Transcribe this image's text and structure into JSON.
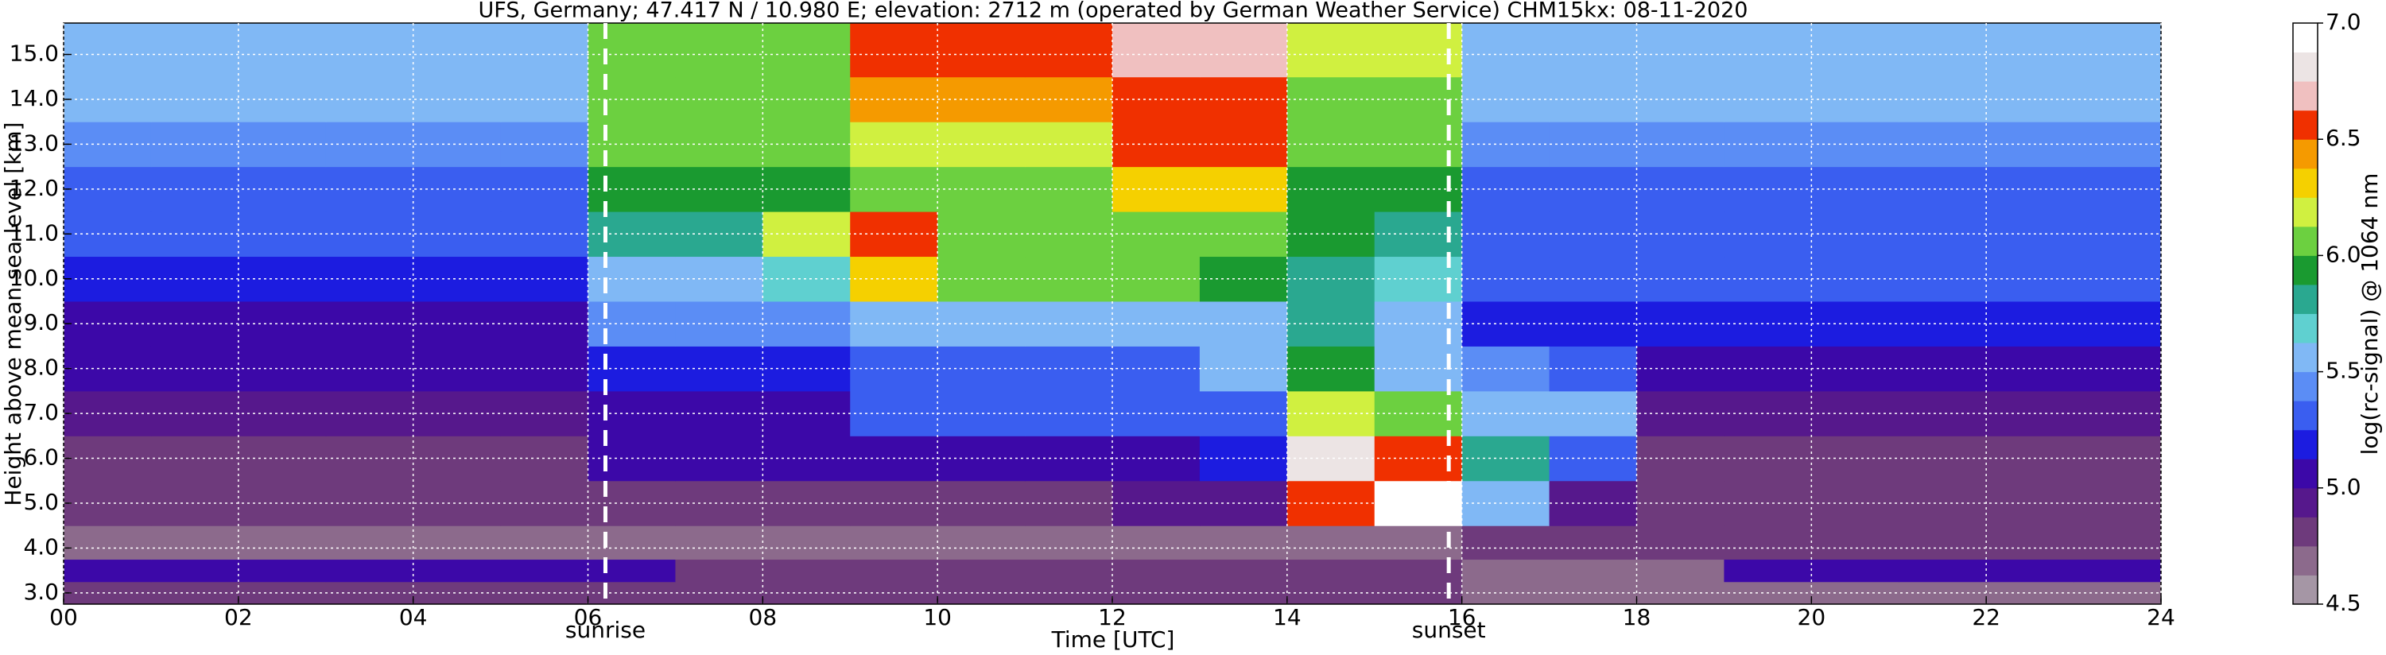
{
  "chart_data": {
    "type": "heatmap",
    "title": "UFS, Germany; 47.417 N / 10.980 E; elevation: 2712 m  (operated by German Weather Service)     CHM15kx: 08-11-2020",
    "xlabel": "Time [UTC]",
    "ylabel": "Height above mean sea level [km]",
    "colorbar_label": "log(rc-signal) @ 1064 nm",
    "xlim": [
      0,
      24
    ],
    "ylim": [
      2.75,
      15.7
    ],
    "xticks": [
      {
        "value": 0,
        "label": "00"
      },
      {
        "value": 2,
        "label": "02"
      },
      {
        "value": 4,
        "label": "04"
      },
      {
        "value": 6,
        "label": "06"
      },
      {
        "value": 8,
        "label": "08"
      },
      {
        "value": 10,
        "label": "10"
      },
      {
        "value": 12,
        "label": "12"
      },
      {
        "value": 14,
        "label": "14"
      },
      {
        "value": 16,
        "label": "16"
      },
      {
        "value": 18,
        "label": "18"
      },
      {
        "value": 20,
        "label": "20"
      },
      {
        "value": 22,
        "label": "22"
      },
      {
        "value": 24,
        "label": "24"
      }
    ],
    "yticks": [
      {
        "value": 3,
        "label": "3.0"
      },
      {
        "value": 4,
        "label": "4.0"
      },
      {
        "value": 5,
        "label": "5.0"
      },
      {
        "value": 6,
        "label": "6.0"
      },
      {
        "value": 7,
        "label": "7.0"
      },
      {
        "value": 8,
        "label": "8.0"
      },
      {
        "value": 9,
        "label": "9.0"
      },
      {
        "value": 10,
        "label": "10.0"
      },
      {
        "value": 11,
        "label": "11.0"
      },
      {
        "value": 12,
        "label": "12.0"
      },
      {
        "value": 13,
        "label": "13.0"
      },
      {
        "value": 14,
        "label": "14.0"
      },
      {
        "value": 15,
        "label": "15.0"
      }
    ],
    "grid": true,
    "clim": [
      4.5,
      7.0
    ],
    "cticks": [
      4.5,
      {
        "value": 5,
        "label": "5.0"
      },
      5.5,
      {
        "value": 6,
        "label": "6.0"
      },
      6.5,
      {
        "value": 7,
        "label": "7.0"
      }
    ],
    "colormap": [
      "#a596a5",
      "#8c6a8c",
      "#6e3a7c",
      "#56188c",
      "#3c08a8",
      "#1c1ce0",
      "#3a5ef0",
      "#5b8df5",
      "#80b8f5",
      "#5fd0d0",
      "#2aa890",
      "#1a9a30",
      "#6cd040",
      "#d0f040",
      "#f5d000",
      "#f59a00",
      "#f03000",
      "#f0c0c0",
      "#ece4e4",
      "#ffffff"
    ],
    "annotations": [
      {
        "x": 6.2,
        "text": "sunrise"
      },
      {
        "x": 15.85,
        "text": "sunset"
      }
    ],
    "xbins": [
      0,
      1,
      2,
      3,
      4,
      5,
      6,
      7,
      8,
      9,
      10,
      11,
      12,
      13,
      14,
      15,
      16,
      17,
      18,
      19,
      20,
      21,
      22,
      23,
      24
    ],
    "ybins": [
      2.75,
      3.25,
      3.75,
      4.5,
      5.5,
      6.5,
      7.5,
      8.5,
      9.5,
      10.5,
      11.5,
      12.5,
      13.5,
      14.5,
      15.7
    ],
    "values": [
      [
        4.8,
        4.8,
        4.8,
        4.8,
        4.8,
        4.8,
        4.8,
        4.8,
        4.8,
        4.8,
        4.8,
        4.8,
        4.8,
        4.8,
        4.8,
        4.8,
        4.7,
        4.7,
        4.7,
        4.7,
        4.7,
        4.7,
        4.7,
        4.7
      ],
      [
        5.0,
        5.0,
        5.0,
        5.0,
        5.0,
        5.0,
        5.0,
        4.8,
        4.8,
        4.8,
        4.8,
        4.8,
        4.8,
        4.8,
        4.8,
        4.8,
        4.7,
        4.7,
        4.7,
        5.0,
        5.0,
        5.0,
        5.0,
        5.0
      ],
      [
        4.7,
        4.7,
        4.7,
        4.7,
        4.7,
        4.7,
        4.7,
        4.7,
        4.7,
        4.7,
        4.7,
        4.7,
        4.7,
        4.7,
        4.7,
        4.7,
        4.85,
        4.85,
        4.85,
        4.85,
        4.85,
        4.85,
        4.85,
        4.85
      ],
      [
        4.75,
        4.75,
        4.75,
        4.75,
        4.75,
        4.75,
        4.8,
        4.8,
        4.8,
        4.8,
        4.8,
        4.8,
        4.9,
        4.9,
        6.5,
        7.0,
        5.5,
        4.9,
        4.75,
        4.75,
        4.75,
        4.75,
        4.75,
        4.75
      ],
      [
        4.8,
        4.8,
        4.8,
        4.8,
        4.8,
        4.8,
        5.0,
        5.0,
        5.0,
        5.0,
        5.1,
        5.1,
        5.1,
        5.2,
        6.8,
        6.5,
        5.8,
        5.3,
        4.85,
        4.85,
        4.85,
        4.85,
        4.85,
        4.85
      ],
      [
        4.9,
        4.9,
        4.9,
        4.9,
        4.9,
        4.9,
        5.1,
        5.1,
        5.1,
        5.25,
        5.25,
        5.25,
        5.25,
        5.3,
        6.2,
        6.0,
        5.6,
        5.5,
        4.95,
        4.95,
        4.95,
        4.95,
        4.95,
        4.95
      ],
      [
        5.0,
        5.0,
        5.0,
        5.0,
        5.0,
        5.0,
        5.2,
        5.2,
        5.2,
        5.35,
        5.35,
        5.35,
        5.35,
        5.6,
        5.9,
        5.6,
        5.4,
        5.3,
        5.05,
        5.05,
        5.05,
        5.05,
        5.05,
        5.05
      ],
      [
        5.1,
        5.1,
        5.1,
        5.1,
        5.1,
        5.1,
        5.4,
        5.4,
        5.4,
        5.5,
        5.5,
        5.5,
        5.5,
        5.6,
        5.8,
        5.6,
        5.15,
        5.15,
        5.15,
        5.15,
        5.15,
        5.15,
        5.15,
        5.15
      ],
      [
        5.2,
        5.2,
        5.2,
        5.2,
        5.2,
        5.2,
        5.6,
        5.6,
        5.7,
        6.3,
        6.0,
        6.1,
        6.0,
        5.9,
        5.8,
        5.7,
        5.25,
        5.25,
        5.25,
        5.25,
        5.25,
        5.25,
        5.25,
        5.25
      ],
      [
        5.3,
        5.3,
        5.3,
        5.3,
        5.3,
        5.3,
        5.8,
        5.8,
        6.2,
        6.5,
        6.0,
        6.0,
        6.0,
        6.0,
        5.9,
        5.8,
        5.3,
        5.3,
        5.3,
        5.3,
        5.3,
        5.3,
        5.3,
        5.3
      ],
      [
        5.35,
        5.35,
        5.35,
        5.35,
        5.35,
        5.35,
        5.9,
        5.9,
        5.9,
        6.1,
        6.1,
        6.1,
        6.3,
        6.3,
        5.9,
        5.9,
        5.35,
        5.35,
        5.35,
        5.35,
        5.35,
        5.35,
        5.35,
        5.35
      ],
      [
        5.4,
        5.4,
        5.4,
        5.4,
        5.4,
        5.4,
        6.0,
        6.0,
        6.0,
        6.2,
        6.2,
        6.2,
        6.5,
        6.5,
        6.0,
        6.0,
        5.45,
        5.45,
        5.45,
        5.45,
        5.45,
        5.45,
        5.45,
        5.45
      ],
      [
        5.5,
        5.5,
        5.5,
        5.5,
        5.5,
        5.5,
        6.0,
        6.0,
        6.0,
        6.4,
        6.4,
        6.4,
        6.6,
        6.6,
        6.1,
        6.1,
        5.55,
        5.55,
        5.55,
        5.55,
        5.55,
        5.55,
        5.55,
        5.55
      ],
      [
        5.6,
        5.6,
        5.6,
        5.6,
        5.6,
        5.6,
        6.1,
        6.1,
        6.1,
        6.5,
        6.5,
        6.5,
        6.7,
        6.7,
        6.2,
        6.2,
        5.6,
        5.6,
        5.6,
        5.6,
        5.6,
        5.6,
        5.6,
        5.6
      ]
    ]
  }
}
